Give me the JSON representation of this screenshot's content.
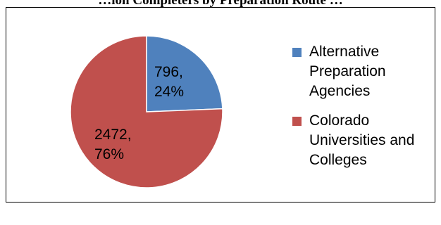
{
  "chart_data": {
    "type": "pie",
    "title": "…ion Completers by Preparation Route …",
    "start_angle_deg": 0,
    "direction": "clockwise",
    "slices": [
      {
        "label": "Alternative Preparation Agencies",
        "value": 796,
        "percent": "24%",
        "color": "#4f81bd",
        "legend_lines": [
          "Alternative",
          "Preparation",
          "Agencies"
        ],
        "data_label_lines": [
          "796,",
          "24%"
        ]
      },
      {
        "label": "Colorado Universities and Colleges",
        "value": 2472,
        "percent": "76%",
        "color": "#c0504d",
        "legend_lines": [
          "Colorado",
          "Universities and",
          "Colleges"
        ],
        "data_label_lines": [
          "2472,",
          "76%"
        ]
      }
    ],
    "legend_position": "right"
  }
}
